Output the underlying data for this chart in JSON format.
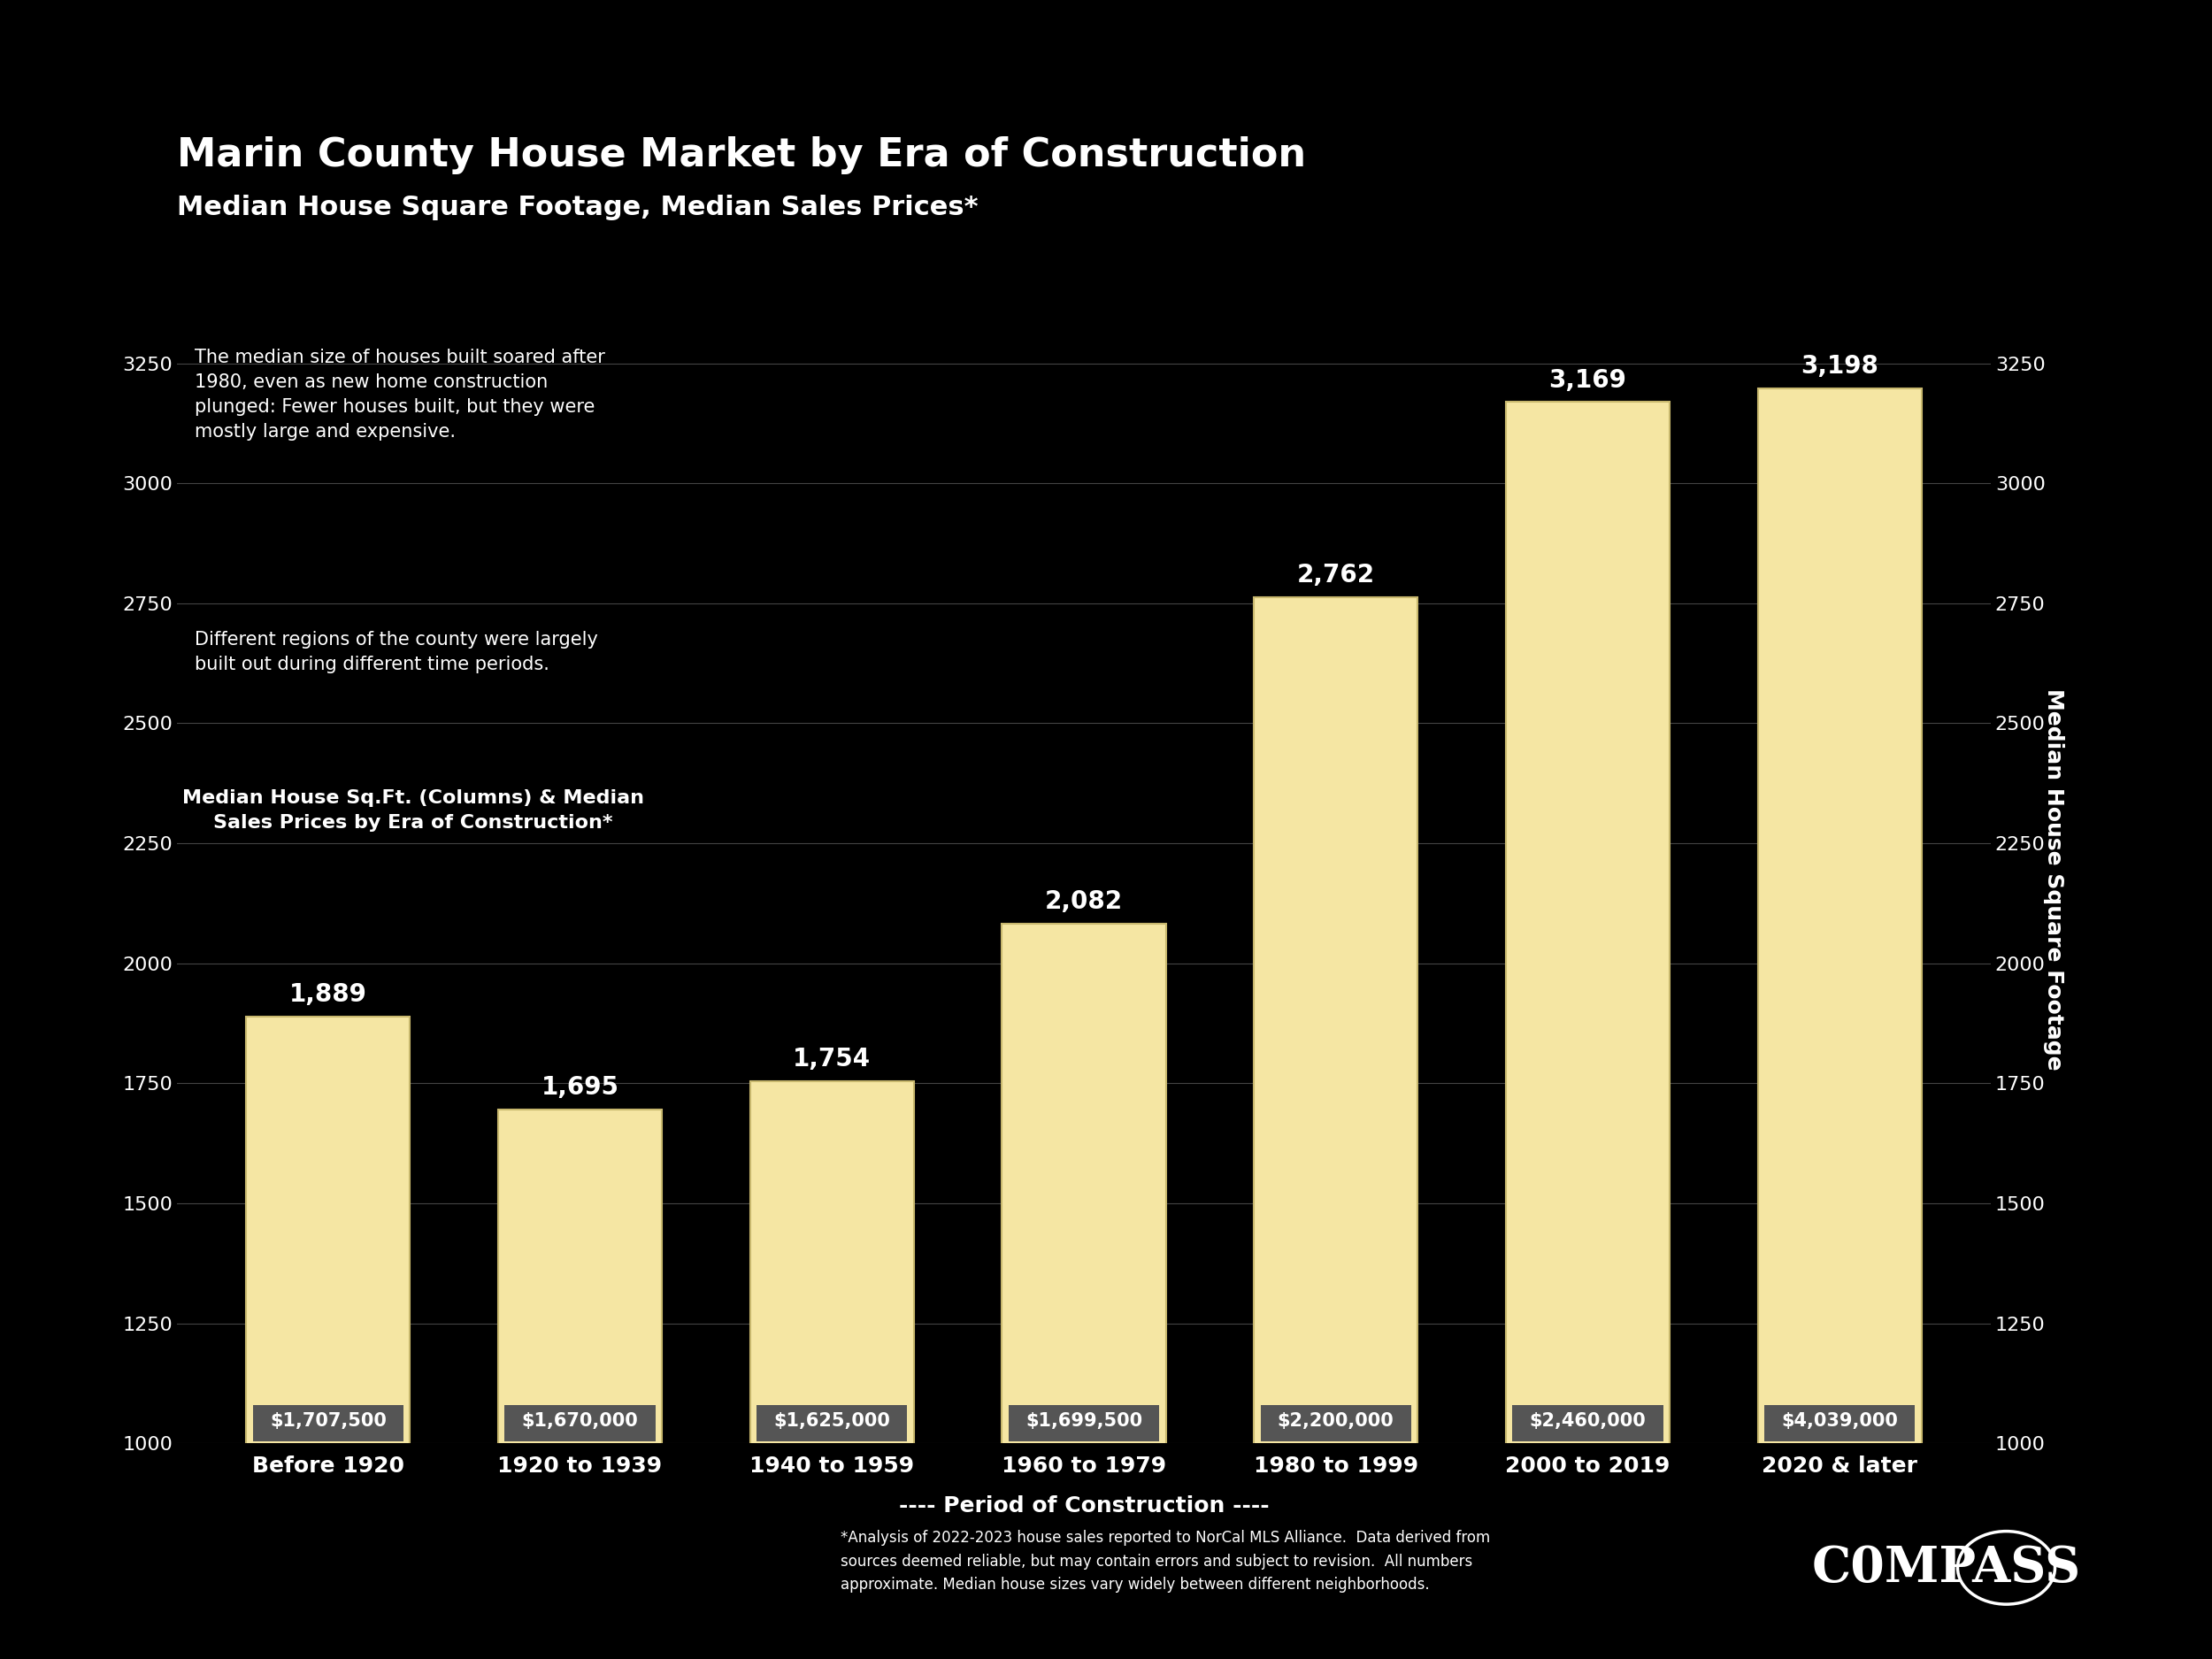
{
  "title": "Marin County House Market by Era of Construction",
  "subtitle": "Median House Square Footage, Median Sales Prices*",
  "categories": [
    "Before 1920",
    "1920 to 1939",
    "1940 to 1959",
    "1960 to 1979",
    "1980 to 1999",
    "2000 to 2019",
    "2020 & later"
  ],
  "sqft_values": [
    1889,
    1695,
    1754,
    2082,
    2762,
    3169,
    3198
  ],
  "prices": [
    "$1,707,500",
    "$1,670,000",
    "$1,625,000",
    "$1,699,500",
    "$2,200,000",
    "$2,460,000",
    "$4,039,000"
  ],
  "bar_color": "#F5E6A3",
  "bar_edge_color": "#C8B86E",
  "background_color": "#000000",
  "text_color": "#ffffff",
  "ylabel": "Median House Square Footage",
  "xlabel": "---- Period of Construction ----",
  "ylim_min": 1000,
  "ylim_max": 3350,
  "yticks": [
    1000,
    1250,
    1500,
    1750,
    2000,
    2250,
    2500,
    2750,
    3000,
    3250
  ],
  "annotation_text1": "The median size of houses built soared after\n1980, even as new home construction\nplunged: Fewer houses built, but they were\nmostly large and expensive.",
  "annotation_text2": "Different regions of the county were largely\nbuilt out during different time periods.",
  "legend_title": "Median House Sq.Ft. (Columns) & Median\nSales Prices by Era of Construction*",
  "footnote": "*Analysis of 2022-2023 house sales reported to NorCal MLS Alliance.  Data derived from\nsources deemed reliable, but may contain errors and subject to revision.  All numbers\napproximate. Median house sizes vary widely between different neighborhoods.",
  "compass_text": "C0MPASS",
  "price_box_color": "#555555",
  "price_text_color": "#ffffff"
}
